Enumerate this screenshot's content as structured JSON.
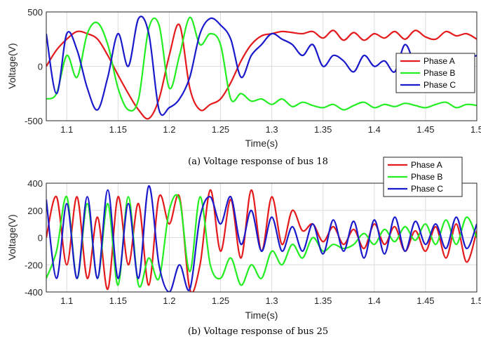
{
  "chart_data": [
    {
      "type": "line",
      "caption": "(a) Voltage response of bus 18",
      "xlabel": "Time(s)",
      "ylabel": "Voltage(V)",
      "xlim": [
        1.08,
        1.5
      ],
      "ylim": [
        -500,
        500
      ],
      "xticks": [
        "1.1",
        "1.15",
        "1.2",
        "1.25",
        "1.3",
        "1.35",
        "1.4",
        "1.45",
        "1.5"
      ],
      "yticks": [
        "-500",
        "0",
        "500"
      ],
      "grid": true,
      "legend_position": "right-middle",
      "series": [
        {
          "name": "Phase A",
          "color": "#e41a1c",
          "x": [
            1.08,
            1.09,
            1.1,
            1.11,
            1.12,
            1.13,
            1.14,
            1.15,
            1.16,
            1.17,
            1.18,
            1.19,
            1.2,
            1.21,
            1.22,
            1.23,
            1.24,
            1.25,
            1.26,
            1.27,
            1.28,
            1.29,
            1.3,
            1.31,
            1.32,
            1.33,
            1.34,
            1.35,
            1.36,
            1.37,
            1.38,
            1.39,
            1.4,
            1.41,
            1.42,
            1.43,
            1.44,
            1.45,
            1.46,
            1.47,
            1.48,
            1.49,
            1.5
          ],
          "y": [
            0,
            150,
            250,
            320,
            300,
            250,
            100,
            -80,
            -250,
            -400,
            -480,
            -300,
            100,
            380,
            -200,
            -400,
            -350,
            -300,
            -150,
            50,
            200,
            280,
            300,
            320,
            310,
            300,
            320,
            260,
            330,
            240,
            310,
            240,
            300,
            260,
            320,
            250,
            330,
            270,
            250,
            320,
            280,
            300,
            250
          ]
        },
        {
          "name": "Phase B",
          "color": "#22ee22",
          "x": [
            1.08,
            1.09,
            1.1,
            1.11,
            1.12,
            1.13,
            1.14,
            1.15,
            1.16,
            1.17,
            1.18,
            1.19,
            1.2,
            1.21,
            1.22,
            1.23,
            1.24,
            1.25,
            1.26,
            1.27,
            1.28,
            1.29,
            1.3,
            1.31,
            1.32,
            1.33,
            1.34,
            1.35,
            1.36,
            1.37,
            1.38,
            1.39,
            1.4,
            1.41,
            1.42,
            1.43,
            1.44,
            1.45,
            1.46,
            1.47,
            1.48,
            1.49,
            1.5
          ],
          "y": [
            -300,
            -250,
            100,
            -100,
            300,
            400,
            200,
            -200,
            -400,
            -300,
            350,
            380,
            -200,
            100,
            450,
            200,
            300,
            200,
            -300,
            -250,
            -320,
            -300,
            -350,
            -300,
            -370,
            -330,
            -360,
            -380,
            -350,
            -400,
            -360,
            -330,
            -380,
            -350,
            -370,
            -340,
            -360,
            -380,
            -350,
            -330,
            -380,
            -350,
            -360
          ]
        },
        {
          "name": "Phase C",
          "color": "#1a1acc",
          "x": [
            1.08,
            1.09,
            1.1,
            1.11,
            1.12,
            1.13,
            1.14,
            1.15,
            1.16,
            1.17,
            1.18,
            1.19,
            1.2,
            1.21,
            1.22,
            1.23,
            1.24,
            1.25,
            1.26,
            1.27,
            1.28,
            1.29,
            1.3,
            1.31,
            1.32,
            1.33,
            1.34,
            1.35,
            1.36,
            1.37,
            1.38,
            1.39,
            1.4,
            1.41,
            1.42,
            1.43,
            1.44,
            1.45,
            1.46,
            1.47,
            1.48,
            1.49,
            1.5
          ],
          "y": [
            300,
            -250,
            300,
            150,
            -200,
            -400,
            -100,
            300,
            0,
            440,
            300,
            -400,
            -380,
            -300,
            -100,
            300,
            440,
            380,
            250,
            -100,
            100,
            200,
            300,
            250,
            200,
            100,
            200,
            0,
            100,
            50,
            -50,
            100,
            0,
            50,
            -50,
            200,
            0,
            -150,
            100,
            0,
            -100,
            50,
            100
          ]
        }
      ]
    },
    {
      "type": "line",
      "caption": "(b) Voltage response of bus 25",
      "xlabel": "Time(s)",
      "ylabel": "Voltage(V)",
      "xlim": [
        1.08,
        1.5
      ],
      "ylim": [
        -400,
        400
      ],
      "xticks": [
        "1.1",
        "1.15",
        "1.2",
        "1.25",
        "1.3",
        "1.35",
        "1.4",
        "1.45",
        "1.5"
      ],
      "yticks": [
        "-400",
        "-200",
        "0",
        "200",
        "400"
      ],
      "grid": true,
      "legend_position": "top-right (above plot)",
      "series": [
        {
          "name": "Phase A",
          "color": "#e41a1c",
          "x": [
            1.08,
            1.09,
            1.1,
            1.11,
            1.12,
            1.13,
            1.14,
            1.15,
            1.16,
            1.17,
            1.18,
            1.19,
            1.2,
            1.21,
            1.22,
            1.23,
            1.24,
            1.25,
            1.26,
            1.27,
            1.28,
            1.29,
            1.3,
            1.31,
            1.32,
            1.33,
            1.34,
            1.35,
            1.36,
            1.37,
            1.38,
            1.39,
            1.4,
            1.41,
            1.42,
            1.43,
            1.44,
            1.45,
            1.46,
            1.47,
            1.48,
            1.49,
            1.5
          ],
          "y": [
            0,
            300,
            -200,
            300,
            -300,
            150,
            -380,
            300,
            -200,
            250,
            -350,
            300,
            100,
            300,
            -380,
            -200,
            350,
            -100,
            280,
            -150,
            350,
            -100,
            300,
            -50,
            200,
            50,
            100,
            -30,
            80,
            -50,
            60,
            -80,
            100,
            -50,
            80,
            -100,
            50,
            -100,
            80,
            -150,
            100,
            -180,
            50
          ]
        },
        {
          "name": "Phase B",
          "color": "#22ee22",
          "x": [
            1.08,
            1.09,
            1.1,
            1.11,
            1.12,
            1.13,
            1.14,
            1.15,
            1.16,
            1.17,
            1.18,
            1.19,
            1.2,
            1.21,
            1.22,
            1.23,
            1.24,
            1.25,
            1.26,
            1.27,
            1.28,
            1.29,
            1.3,
            1.31,
            1.32,
            1.33,
            1.34,
            1.35,
            1.36,
            1.37,
            1.38,
            1.39,
            1.4,
            1.41,
            1.42,
            1.43,
            1.44,
            1.45,
            1.46,
            1.47,
            1.48,
            1.49,
            1.5
          ],
          "y": [
            -300,
            -100,
            300,
            -300,
            250,
            -300,
            250,
            -350,
            300,
            -350,
            -150,
            -300,
            200,
            280,
            -250,
            300,
            -200,
            -300,
            -150,
            -350,
            -200,
            -300,
            -100,
            -200,
            -50,
            -150,
            0,
            -100,
            -50,
            -80,
            -50,
            30,
            -50,
            60,
            -30,
            80,
            -20,
            100,
            -50,
            130,
            -50,
            150,
            0
          ]
        },
        {
          "name": "Phase C",
          "color": "#1a1acc",
          "x": [
            1.08,
            1.09,
            1.1,
            1.11,
            1.12,
            1.13,
            1.14,
            1.15,
            1.16,
            1.17,
            1.18,
            1.19,
            1.2,
            1.21,
            1.22,
            1.23,
            1.24,
            1.25,
            1.26,
            1.27,
            1.28,
            1.29,
            1.3,
            1.31,
            1.32,
            1.33,
            1.34,
            1.35,
            1.36,
            1.37,
            1.38,
            1.39,
            1.4,
            1.41,
            1.42,
            1.43,
            1.44,
            1.45,
            1.46,
            1.47,
            1.48,
            1.49,
            1.5
          ],
          "y": [
            280,
            -300,
            250,
            -300,
            300,
            -300,
            350,
            -300,
            250,
            -300,
            380,
            -200,
            -400,
            -200,
            -380,
            150,
            300,
            100,
            300,
            -50,
            200,
            -100,
            150,
            -100,
            80,
            -100,
            100,
            -120,
            130,
            -100,
            120,
            -150,
            130,
            -120,
            150,
            -100,
            120,
            -50,
            100,
            -80,
            150,
            -80,
            100
          ]
        }
      ]
    }
  ]
}
